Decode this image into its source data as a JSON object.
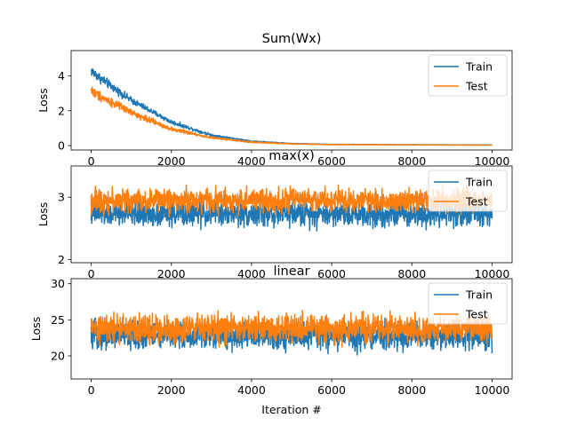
{
  "chart_data": [
    {
      "type": "line",
      "title": "Sum(Wx)",
      "xlabel": "",
      "ylabel": "Loss",
      "xlim": [
        -500,
        10500
      ],
      "ylim": [
        -0.25,
        5.45
      ],
      "xticks": [
        0,
        2000,
        4000,
        6000,
        8000,
        10000
      ],
      "yticks": [
        0,
        2,
        4
      ],
      "legend": "top-right",
      "x_range": [
        0,
        10000
      ],
      "series": [
        {
          "name": "Train",
          "color": "#1f77b4",
          "trend_x": [
            0,
            100,
            500,
            1000,
            2000,
            3000,
            4000,
            5000,
            6000,
            8000,
            10000
          ],
          "trend_y": [
            4.3,
            4.1,
            3.4,
            2.6,
            1.35,
            0.6,
            0.25,
            0.12,
            0.07,
            0.05,
            0.04
          ],
          "noise_amplitude": [
            0.45,
            0.45,
            0.35,
            0.28,
            0.18,
            0.1,
            0.05,
            0.03,
            0.02,
            0.01,
            0.01
          ]
        },
        {
          "name": "Test",
          "color": "#ff7f0e",
          "trend_x": [
            0,
            100,
            500,
            1000,
            2000,
            3000,
            4000,
            5000,
            6000,
            8000,
            10000
          ],
          "trend_y": [
            3.2,
            3.0,
            2.5,
            1.9,
            0.95,
            0.45,
            0.2,
            0.1,
            0.06,
            0.04,
            0.03
          ],
          "noise_amplitude": [
            0.5,
            0.45,
            0.35,
            0.28,
            0.18,
            0.1,
            0.05,
            0.03,
            0.02,
            0.01,
            0.01
          ]
        }
      ]
    },
    {
      "type": "line",
      "title": "max(x)",
      "xlabel": "",
      "ylabel": "Loss",
      "xlim": [
        -500,
        10500
      ],
      "ylim": [
        1.95,
        3.5
      ],
      "xticks": [
        0,
        2000,
        4000,
        6000,
        8000,
        10000
      ],
      "yticks": [
        2,
        3
      ],
      "legend": "top-right",
      "x_range": [
        0,
        10000
      ],
      "series": [
        {
          "name": "Train",
          "color": "#1f77b4",
          "trend_x": [
            0,
            10000
          ],
          "trend_y": [
            2.74,
            2.74
          ],
          "noise_amplitude": [
            0.3,
            0.3
          ]
        },
        {
          "name": "Test",
          "color": "#ff7f0e",
          "trend_x": [
            0,
            10000
          ],
          "trend_y": [
            2.95,
            2.95
          ],
          "noise_amplitude": [
            0.28,
            0.28
          ]
        }
      ]
    },
    {
      "type": "line",
      "title": "linear",
      "xlabel": "Iteration #",
      "ylabel": "Loss",
      "xlim": [
        -500,
        10500
      ],
      "ylim": [
        16.8,
        30.7
      ],
      "xticks": [
        0,
        2000,
        4000,
        6000,
        8000,
        10000
      ],
      "yticks": [
        20,
        25,
        30
      ],
      "legend": "top-right",
      "x_range": [
        0,
        10000
      ],
      "series": [
        {
          "name": "Train",
          "color": "#1f77b4",
          "trend_x": [
            0,
            10000
          ],
          "trend_y": [
            22.8,
            22.8
          ],
          "noise_amplitude": [
            2.8,
            2.8
          ]
        },
        {
          "name": "Test",
          "color": "#ff7f0e",
          "trend_x": [
            0,
            10000
          ],
          "trend_y": [
            23.8,
            23.8
          ],
          "noise_amplitude": [
            2.9,
            2.9
          ]
        }
      ]
    }
  ]
}
